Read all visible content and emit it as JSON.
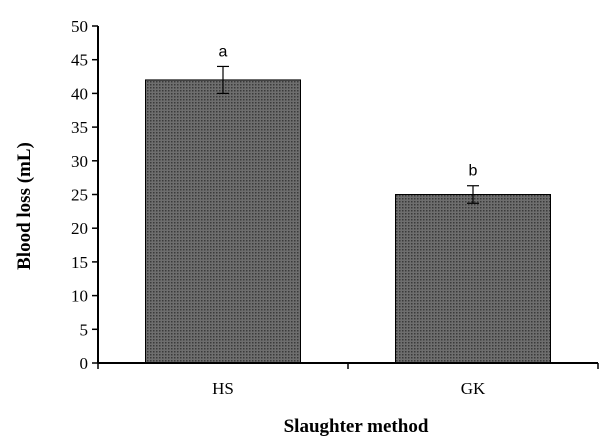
{
  "chart_data": {
    "type": "bar",
    "categories": [
      "HS",
      "GK"
    ],
    "values": [
      42,
      25
    ],
    "error": [
      2,
      1.3
    ],
    "significance_labels": [
      "a",
      "b"
    ],
    "title": "",
    "xlabel": "Slaughter method",
    "ylabel": "Blood loss (mL)",
    "ylim": [
      0,
      50
    ],
    "yticks": [
      "0",
      "5",
      "10",
      "15",
      "20",
      "25",
      "30",
      "35",
      "40",
      "45",
      "50"
    ],
    "grid": false,
    "legend": "none",
    "bar_pattern": "dotted-grey"
  }
}
